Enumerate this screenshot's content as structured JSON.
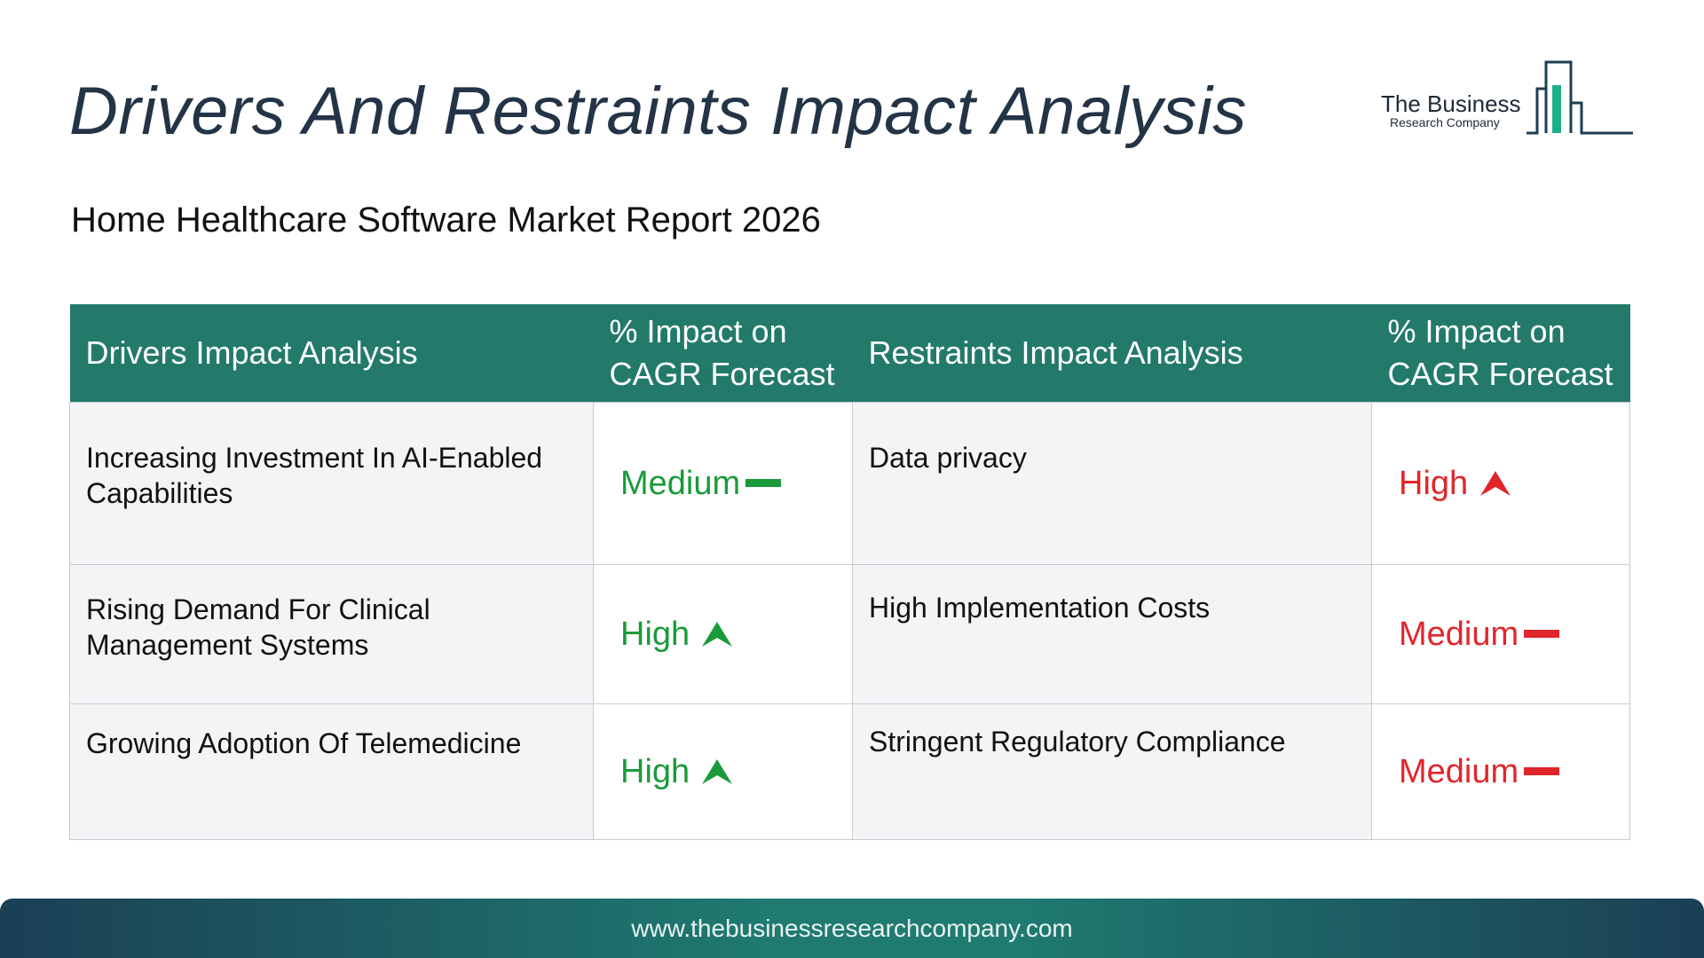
{
  "header": {
    "title": "Drivers And Restraints Impact Analysis",
    "subtitle": "Home Healthcare Software Market Report 2026"
  },
  "logo": {
    "line1": "The Business",
    "line2": "Research Company"
  },
  "table": {
    "headers": {
      "drivers": "Drivers Impact Analysis",
      "drivers_impact": "% Impact on CAGR Forecast",
      "restraints": "Restraints Impact Analysis",
      "restraints_impact": "% Impact on CAGR Forecast"
    },
    "rows": [
      {
        "driver": "Increasing Investment In AI-Enabled Capabilities",
        "driver_impact": "Medium",
        "driver_icon": "dash-icon",
        "restraint": "Data privacy",
        "restraint_impact": "High",
        "restraint_icon": "arrow-up-icon"
      },
      {
        "driver": "Rising Demand For Clinical Management Systems",
        "driver_impact": "High",
        "driver_icon": "arrow-up-icon",
        "restraint": "High Implementation Costs",
        "restraint_impact": "Medium",
        "restraint_icon": "dash-icon"
      },
      {
        "driver": "Growing Adoption Of Telemedicine",
        "driver_impact": "High",
        "driver_icon": "arrow-up-icon",
        "restraint": "Stringent Regulatory Compliance",
        "restraint_impact": "Medium",
        "restraint_icon": "dash-icon"
      }
    ]
  },
  "colors": {
    "header_bg": "#237a6a",
    "driver_level": "#1a9a3a",
    "restraint_level": "#e0262b"
  },
  "footer": {
    "url": "www.thebusinessresearchcompany.com"
  }
}
